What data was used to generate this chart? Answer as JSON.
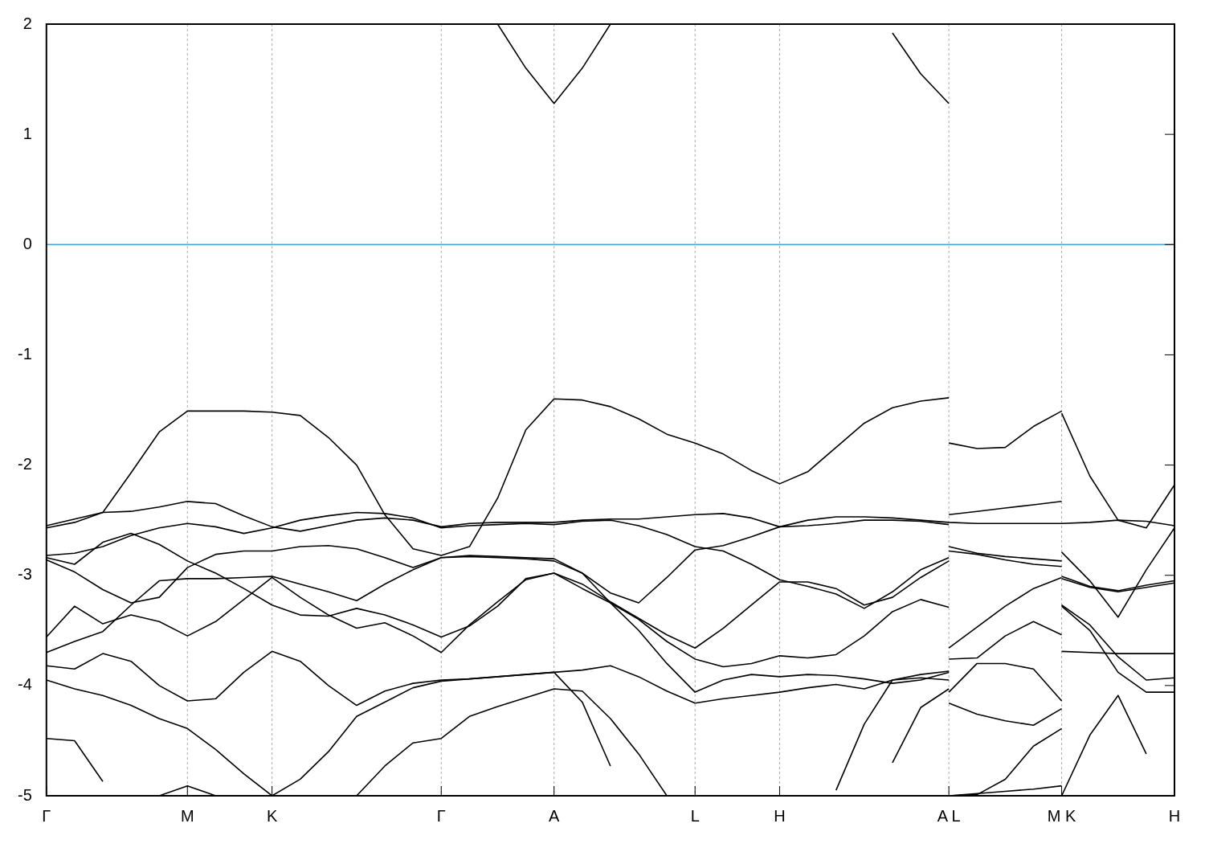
{
  "chart_data": {
    "type": "line",
    "categories": [
      "Γ",
      null,
      null,
      null,
      null,
      "M",
      null,
      null,
      "K",
      null,
      null,
      null,
      null,
      null,
      "Γ",
      null,
      null,
      null,
      "A",
      null,
      null,
      null,
      null,
      "L",
      null,
      null,
      "H",
      null,
      null,
      null,
      null,
      null,
      "A L",
      null,
      null,
      null,
      "M K",
      null,
      null,
      null,
      "H"
    ],
    "series": [
      {
        "color": "#000000",
        "values": [
          -2.57,
          -2.52,
          -2.43,
          -2.07,
          -1.7,
          -1.51,
          -1.51,
          -1.51,
          -1.52,
          -1.55,
          -1.75,
          -2.0,
          -2.45,
          -2.76,
          -2.82,
          -2.74,
          -2.3,
          -1.68,
          -1.4,
          -1.41,
          -1.47,
          -1.58,
          -1.72,
          -1.8,
          -1.9,
          -2.05,
          -2.17,
          -2.06,
          -1.84,
          -1.62,
          -1.48,
          -1.42,
          -1.39,
          null,
          null,
          null,
          null,
          null,
          null,
          null,
          null
        ]
      },
      {
        "color": "#000000",
        "values": [
          -2.55,
          -2.49,
          -2.43,
          -2.42,
          -2.38,
          -2.33,
          -2.35,
          -2.46,
          -2.56,
          -2.6,
          -2.55,
          -2.5,
          -2.48,
          -2.5,
          -2.56,
          -2.53,
          -2.52,
          -2.52,
          -2.52,
          -2.5,
          -2.49,
          -2.49,
          -2.47,
          -2.45,
          -2.44,
          -2.48,
          -2.56,
          -2.5,
          -2.47,
          -2.47,
          -2.48,
          -2.5,
          -2.52,
          -2.53,
          -2.53,
          -2.53,
          -2.53,
          -2.52,
          -2.5,
          -2.51,
          -2.55
        ]
      },
      {
        "color": "#000000",
        "values": [
          -2.82,
          -2.8,
          -2.74,
          -2.64,
          -2.57,
          -2.53,
          -2.56,
          -2.62,
          -2.57,
          -2.5,
          -2.46,
          -2.43,
          -2.44,
          -2.48,
          -2.57,
          -2.55,
          -2.54,
          -2.53,
          -2.54,
          -2.51,
          -2.5,
          -2.55,
          -2.63,
          -2.74,
          -2.78,
          -2.9,
          -3.04,
          -3.1,
          -3.17,
          -3.3,
          -3.15,
          -2.95,
          -2.84,
          null,
          null,
          null,
          null,
          null,
          null,
          null,
          null
        ]
      },
      {
        "color": "#000000",
        "values": [
          -2.84,
          -2.9,
          -2.7,
          -2.62,
          -2.72,
          -2.87,
          -2.98,
          -3.12,
          -3.27,
          -3.36,
          -3.37,
          -3.3,
          -3.36,
          -3.45,
          -3.56,
          -3.46,
          -3.28,
          -3.03,
          -2.98,
          -3.08,
          -3.24,
          -3.39,
          -3.54,
          -3.66,
          -3.48,
          -3.27,
          -3.06,
          -3.06,
          -3.12,
          -3.27,
          -3.2,
          -3.02,
          -2.87,
          null,
          null,
          null,
          null,
          null,
          null,
          null,
          null
        ]
      },
      {
        "color": "#000000",
        "values": [
          -2.86,
          -2.97,
          -3.13,
          -3.25,
          -3.2,
          -2.93,
          -2.81,
          -2.78,
          -2.78,
          -2.74,
          -2.73,
          -2.76,
          -2.84,
          -2.93,
          -2.84,
          -2.83,
          -2.84,
          -2.85,
          -2.87,
          -2.98,
          -3.16,
          -3.25,
          -3.02,
          -2.77,
          -2.73,
          -2.65,
          -2.56,
          -2.55,
          -2.53,
          -2.5,
          -2.5,
          -2.51,
          -2.54,
          null,
          null,
          null,
          null,
          null,
          null,
          null,
          null
        ]
      },
      {
        "color": "#000000",
        "values": [
          -3.56,
          -3.28,
          -3.44,
          -3.36,
          -3.42,
          -3.55,
          -3.42,
          -3.22,
          -3.02,
          -3.2,
          -3.36,
          -3.48,
          -3.43,
          -3.55,
          -3.7,
          -3.45,
          -3.24,
          -3.04,
          -2.98,
          -3.12,
          -3.25,
          -3.4,
          -3.6,
          -3.76,
          -3.83,
          -3.8,
          -3.73,
          -3.75,
          -3.72,
          -3.55,
          -3.33,
          -3.22,
          -3.29,
          null,
          null,
          null,
          null,
          null,
          null,
          null,
          null
        ]
      },
      {
        "color": "#000000",
        "values": [
          -3.7,
          -3.6,
          -3.51,
          -3.27,
          -3.05,
          -3.03,
          -3.03,
          -3.02,
          -3.01,
          -3.08,
          -3.15,
          -3.23,
          -3.08,
          -2.95,
          -2.84,
          -2.82,
          -2.83,
          -2.84,
          -2.85,
          -2.98,
          -3.25,
          -3.5,
          -3.8,
          -4.06,
          -3.95,
          -3.9,
          -3.92,
          -3.9,
          -3.91,
          -3.94,
          -3.98,
          -3.95,
          -3.88,
          null,
          null,
          null,
          null,
          null,
          null,
          null,
          null
        ]
      },
      {
        "color": "#000000",
        "values": [
          -3.82,
          -3.85,
          -3.71,
          -3.78,
          -4.0,
          -4.14,
          -4.12,
          -3.88,
          -3.69,
          -3.78,
          -4.0,
          -4.18,
          -4.05,
          -3.98,
          -3.95,
          -3.94,
          -3.92,
          -3.9,
          -3.88,
          -3.86,
          -3.82,
          -3.92,
          -4.05,
          -4.16,
          -4.12,
          -4.09,
          -4.06,
          -4.02,
          -3.99,
          -4.03,
          -3.95,
          -3.93,
          -3.95,
          null,
          null,
          null,
          null,
          null,
          null,
          null,
          null
        ]
      },
      {
        "color": "#000000",
        "values": [
          -3.95,
          -4.03,
          -4.09,
          -4.18,
          -4.3,
          -4.39,
          -4.58,
          -4.8,
          -5.0,
          -4.85,
          -4.6,
          -4.28,
          -4.15,
          -4.02,
          -3.96,
          -3.94,
          -3.92,
          -3.9,
          -3.88,
          -4.15,
          -4.73,
          null,
          null,
          null,
          null,
          null,
          null,
          null,
          -4.95,
          -4.35,
          -3.95,
          -3.9,
          -3.87,
          null,
          null,
          null,
          null,
          null,
          null,
          null,
          null
        ]
      },
      {
        "color": "#000000",
        "values": [
          -4.48,
          -4.5,
          -4.87,
          null,
          -5.0,
          -4.91,
          -5.0,
          null,
          null,
          null,
          null,
          -5.0,
          -4.73,
          -4.52,
          -4.48,
          -4.28,
          -4.19,
          -4.11,
          -4.03,
          -4.05,
          -4.3,
          -4.62,
          -5.0,
          null,
          null,
          null,
          null,
          null,
          null,
          null,
          -4.7,
          -4.2,
          -4.03,
          null,
          null,
          null,
          null,
          null,
          null,
          null,
          null
        ]
      },
      {
        "color": "#000000",
        "values": [
          null,
          null,
          null,
          null,
          null,
          null,
          null,
          null,
          null,
          null,
          null,
          null,
          null,
          null,
          null,
          null,
          2.0,
          1.6,
          1.28,
          1.6,
          2.0,
          null,
          null,
          null,
          null,
          null,
          null,
          null,
          null,
          null,
          null,
          null,
          null,
          null,
          null,
          null,
          null,
          null,
          null,
          null,
          null
        ]
      },
      {
        "color": "#000000",
        "values": [
          null,
          null,
          null,
          null,
          null,
          null,
          null,
          null,
          null,
          null,
          null,
          null,
          null,
          null,
          null,
          null,
          null,
          null,
          null,
          null,
          null,
          null,
          null,
          null,
          null,
          null,
          null,
          null,
          null,
          null,
          1.92,
          1.55,
          1.28,
          null,
          null,
          null,
          null,
          null,
          null,
          null,
          null
        ]
      },
      {
        "color": "#000000",
        "values": [
          null,
          null,
          null,
          null,
          null,
          null,
          null,
          null,
          null,
          null,
          null,
          null,
          null,
          null,
          null,
          null,
          null,
          null,
          null,
          null,
          null,
          null,
          null,
          null,
          null,
          null,
          null,
          null,
          null,
          null,
          null,
          null,
          -1.8,
          -1.85,
          -1.84,
          -1.65,
          -1.51,
          null,
          null,
          null,
          null
        ]
      },
      {
        "color": "#000000",
        "values": [
          null,
          null,
          null,
          null,
          null,
          null,
          null,
          null,
          null,
          null,
          null,
          null,
          null,
          null,
          null,
          null,
          null,
          null,
          null,
          null,
          null,
          null,
          null,
          null,
          null,
          null,
          null,
          null,
          null,
          null,
          null,
          null,
          -2.45,
          -2.42,
          -2.39,
          -2.36,
          -2.33,
          null,
          null,
          null,
          null
        ]
      },
      {
        "color": "#000000",
        "values": [
          null,
          null,
          null,
          null,
          null,
          null,
          null,
          null,
          null,
          null,
          null,
          null,
          null,
          null,
          null,
          null,
          null,
          null,
          null,
          null,
          null,
          null,
          null,
          null,
          null,
          null,
          null,
          null,
          null,
          null,
          null,
          null,
          -2.74,
          -2.8,
          -2.83,
          -2.85,
          -2.87,
          null,
          null,
          null,
          null
        ]
      },
      {
        "color": "#000000",
        "values": [
          null,
          null,
          null,
          null,
          null,
          null,
          null,
          null,
          null,
          null,
          null,
          null,
          null,
          null,
          null,
          null,
          null,
          null,
          null,
          null,
          null,
          null,
          null,
          null,
          null,
          null,
          null,
          null,
          null,
          null,
          null,
          null,
          -2.78,
          -2.81,
          -2.86,
          -2.9,
          -2.92,
          null,
          null,
          null,
          null
        ]
      },
      {
        "color": "#000000",
        "values": [
          null,
          null,
          null,
          null,
          null,
          null,
          null,
          null,
          null,
          null,
          null,
          null,
          null,
          null,
          null,
          null,
          null,
          null,
          null,
          null,
          null,
          null,
          null,
          null,
          null,
          null,
          null,
          null,
          null,
          null,
          null,
          null,
          -3.66,
          -3.47,
          -3.28,
          -3.12,
          -3.02,
          null,
          null,
          null,
          null
        ]
      },
      {
        "color": "#000000",
        "values": [
          null,
          null,
          null,
          null,
          null,
          null,
          null,
          null,
          null,
          null,
          null,
          null,
          null,
          null,
          null,
          null,
          null,
          null,
          null,
          null,
          null,
          null,
          null,
          null,
          null,
          null,
          null,
          null,
          null,
          null,
          null,
          null,
          -3.76,
          -3.75,
          -3.55,
          -3.42,
          -3.54,
          null,
          null,
          null,
          null
        ]
      },
      {
        "color": "#000000",
        "values": [
          null,
          null,
          null,
          null,
          null,
          null,
          null,
          null,
          null,
          null,
          null,
          null,
          null,
          null,
          null,
          null,
          null,
          null,
          null,
          null,
          null,
          null,
          null,
          null,
          null,
          null,
          null,
          null,
          null,
          null,
          null,
          null,
          -4.06,
          -3.8,
          -3.8,
          -3.85,
          -4.14,
          null,
          null,
          null,
          null
        ]
      },
      {
        "color": "#000000",
        "values": [
          null,
          null,
          null,
          null,
          null,
          null,
          null,
          null,
          null,
          null,
          null,
          null,
          null,
          null,
          null,
          null,
          null,
          null,
          null,
          null,
          null,
          null,
          null,
          null,
          null,
          null,
          null,
          null,
          null,
          null,
          null,
          null,
          -4.16,
          -4.26,
          -4.32,
          -4.36,
          -4.21,
          null,
          null,
          null,
          null
        ]
      },
      {
        "color": "#000000",
        "values": [
          null,
          null,
          null,
          null,
          null,
          null,
          null,
          null,
          null,
          null,
          null,
          null,
          null,
          null,
          null,
          null,
          null,
          null,
          null,
          null,
          null,
          null,
          null,
          null,
          null,
          null,
          null,
          null,
          null,
          null,
          null,
          null,
          -5.0,
          -4.99,
          -4.85,
          -4.55,
          -4.39,
          null,
          null,
          null,
          null
        ]
      },
      {
        "color": "#000000",
        "values": [
          null,
          null,
          null,
          null,
          null,
          null,
          null,
          null,
          null,
          null,
          null,
          null,
          null,
          null,
          null,
          null,
          null,
          null,
          null,
          null,
          null,
          null,
          null,
          null,
          null,
          null,
          null,
          null,
          null,
          null,
          null,
          null,
          -5.0,
          -4.98,
          -4.96,
          -4.94,
          -4.91,
          null,
          null,
          null,
          null
        ]
      },
      {
        "color": "#000000",
        "values": [
          null,
          null,
          null,
          null,
          null,
          null,
          null,
          null,
          null,
          null,
          null,
          null,
          null,
          null,
          null,
          null,
          null,
          null,
          null,
          null,
          null,
          null,
          null,
          null,
          null,
          null,
          null,
          null,
          null,
          null,
          null,
          null,
          null,
          null,
          null,
          null,
          -1.53,
          -2.1,
          -2.5,
          -2.57,
          -2.18
        ]
      },
      {
        "color": "#000000",
        "values": [
          null,
          null,
          null,
          null,
          null,
          null,
          null,
          null,
          null,
          null,
          null,
          null,
          null,
          null,
          null,
          null,
          null,
          null,
          null,
          null,
          null,
          null,
          null,
          null,
          null,
          null,
          null,
          null,
          null,
          null,
          null,
          null,
          null,
          null,
          null,
          null,
          -2.79,
          -3.05,
          -3.38,
          -2.95,
          -2.57
        ]
      },
      {
        "color": "#000000",
        "values": [
          null,
          null,
          null,
          null,
          null,
          null,
          null,
          null,
          null,
          null,
          null,
          null,
          null,
          null,
          null,
          null,
          null,
          null,
          null,
          null,
          null,
          null,
          null,
          null,
          null,
          null,
          null,
          null,
          null,
          null,
          null,
          null,
          null,
          null,
          null,
          null,
          -3.01,
          -3.1,
          -3.14,
          -3.09,
          -3.05
        ]
      },
      {
        "color": "#000000",
        "values": [
          null,
          null,
          null,
          null,
          null,
          null,
          null,
          null,
          null,
          null,
          null,
          null,
          null,
          null,
          null,
          null,
          null,
          null,
          null,
          null,
          null,
          null,
          null,
          null,
          null,
          null,
          null,
          null,
          null,
          null,
          null,
          null,
          null,
          null,
          null,
          null,
          -3.03,
          -3.11,
          -3.15,
          -3.11,
          -3.07
        ]
      },
      {
        "color": "#000000",
        "values": [
          null,
          null,
          null,
          null,
          null,
          null,
          null,
          null,
          null,
          null,
          null,
          null,
          null,
          null,
          null,
          null,
          null,
          null,
          null,
          null,
          null,
          null,
          null,
          null,
          null,
          null,
          null,
          null,
          null,
          null,
          null,
          null,
          null,
          null,
          null,
          null,
          -3.27,
          -3.45,
          -3.74,
          -3.95,
          -3.93
        ]
      },
      {
        "color": "#000000",
        "values": [
          null,
          null,
          null,
          null,
          null,
          null,
          null,
          null,
          null,
          null,
          null,
          null,
          null,
          null,
          null,
          null,
          null,
          null,
          null,
          null,
          null,
          null,
          null,
          null,
          null,
          null,
          null,
          null,
          null,
          null,
          null,
          null,
          null,
          null,
          null,
          null,
          -3.28,
          -3.5,
          -3.88,
          -4.06,
          -4.06
        ]
      },
      {
        "color": "#000000",
        "values": [
          null,
          null,
          null,
          null,
          null,
          null,
          null,
          null,
          null,
          null,
          null,
          null,
          null,
          null,
          null,
          null,
          null,
          null,
          null,
          null,
          null,
          null,
          null,
          null,
          null,
          null,
          null,
          null,
          null,
          null,
          null,
          null,
          null,
          null,
          null,
          null,
          -3.69,
          -3.7,
          -3.71,
          -3.71,
          -3.71
        ]
      },
      {
        "color": "#000000",
        "values": [
          null,
          null,
          null,
          null,
          null,
          null,
          null,
          null,
          null,
          null,
          null,
          null,
          null,
          null,
          null,
          null,
          null,
          null,
          null,
          null,
          null,
          null,
          null,
          null,
          null,
          null,
          null,
          null,
          null,
          null,
          null,
          null,
          null,
          null,
          null,
          null,
          -5.0,
          -4.45,
          -4.09,
          -4.62,
          null
        ]
      }
    ],
    "ylim": [
      -5,
      2
    ],
    "yticks": [
      -5,
      -4,
      -3,
      -2,
      -1,
      0,
      1,
      2
    ],
    "ref_lines": [
      {
        "axis": "y",
        "value": 0,
        "color": "#3ea6dc"
      }
    ],
    "grid": "x",
    "legend": false
  }
}
